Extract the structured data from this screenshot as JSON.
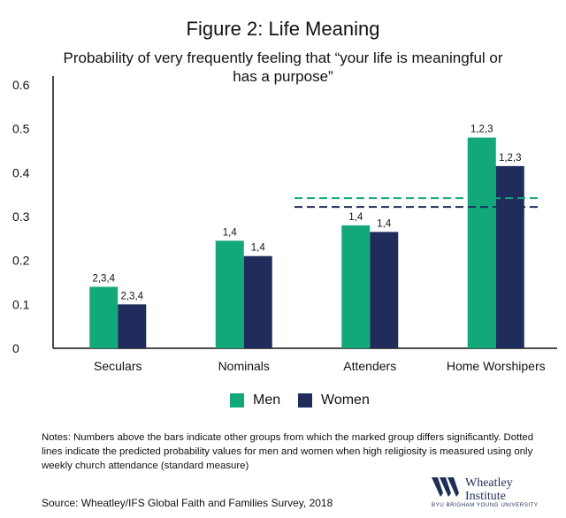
{
  "title": "Figure 2: Life Meaning",
  "subtitle": "Probability of very frequently feeling that “your life is meaningful or has a purpose”",
  "colors": {
    "men": "#13a87a",
    "women": "#1f2c5c",
    "axis": "#111111"
  },
  "chart_data": {
    "type": "bar",
    "title": "Figure 2: Life Meaning",
    "subtitle": "Probability of very frequently feeling that “your life is meaningful or has a purpose”",
    "categories": [
      "Seculars",
      "Nominals",
      "Attenders",
      "Home Worshipers"
    ],
    "series": [
      {
        "name": "Men",
        "values": [
          0.14,
          0.245,
          0.28,
          0.48
        ],
        "labels": [
          "2,3,4",
          "1,4",
          "1,4",
          "1,2,3"
        ]
      },
      {
        "name": "Women",
        "values": [
          0.1,
          0.21,
          0.265,
          0.415
        ],
        "labels": [
          "2,3,4",
          "1,4",
          "1,4",
          "1,2,3"
        ]
      }
    ],
    "ylim": [
      0,
      0.6
    ],
    "yticks": [
      "0",
      "0.1",
      "0.2",
      "0.3",
      "0.4",
      "0.5",
      "0.6"
    ],
    "reference_lines": [
      {
        "series": "Men",
        "value": 0.342,
        "style": "dashed"
      },
      {
        "series": "Women",
        "value": 0.322,
        "style": "dashed"
      }
    ],
    "legend": {
      "position": "bottom",
      "entries": [
        "Men",
        "Women"
      ]
    },
    "grid": false
  },
  "notes": "Notes: Numbers above the bars indicate other groups from which the marked group differs significantly. Dotted lines indicate the predicted probability values for men and women when high religiosity is measured using only weekly church attendance (standard measure)",
  "source": "Source: Wheatley/IFS Global Faith and Families Survey, 2018",
  "logo": {
    "name_line1": "Wheatley",
    "name_line2": "Institute",
    "sub": "BYU BRIGHAM YOUNG UNIVERSITY"
  }
}
